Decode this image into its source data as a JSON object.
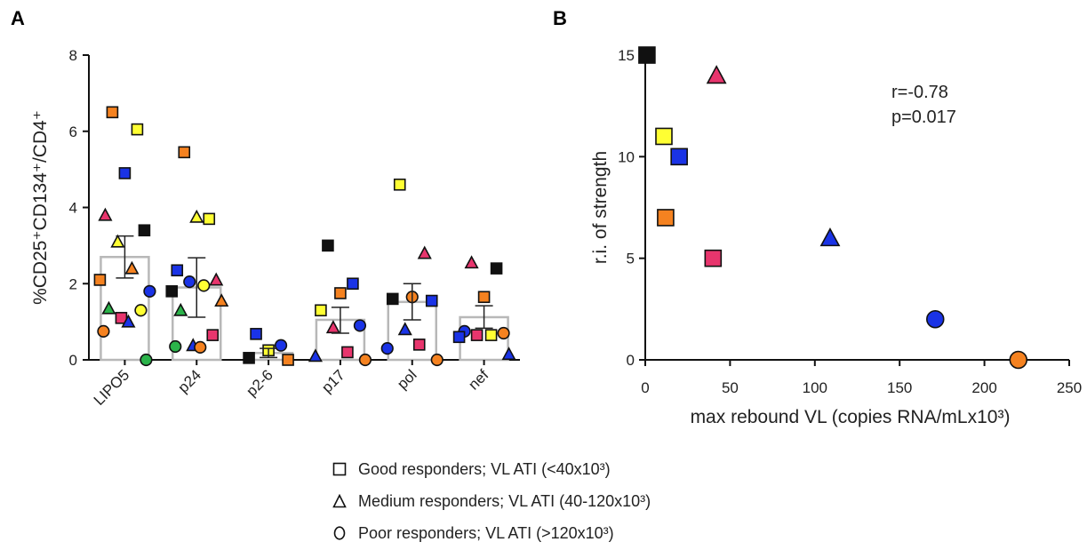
{
  "panels": {
    "a_label": "A",
    "b_label": "B"
  },
  "colors": {
    "orange": "#f58220",
    "yellow": "#ffff33",
    "blue": "#1a33e6",
    "black": "#111111",
    "pink": "#e8356d",
    "green": "#2bb34a",
    "bar_edge": "#b8b8b8",
    "axis": "#111111"
  },
  "chart_data": [
    {
      "id": "A",
      "type": "bar",
      "title": "",
      "xlabel": "",
      "ylabel": "%CD25⁺CD134⁺/CD4⁺",
      "ylim": [
        0,
        8
      ],
      "yticks": [
        0,
        2,
        4,
        6,
        8
      ],
      "categories": [
        "LIPO5",
        "p24",
        "p2-6",
        "p17",
        "pol",
        "nef"
      ],
      "means": [
        2.7,
        1.9,
        0.18,
        1.05,
        1.52,
        1.12
      ],
      "sem_low": [
        2.15,
        1.12,
        0.06,
        0.7,
        1.05,
        0.83
      ],
      "sem_high": [
        3.25,
        2.68,
        0.3,
        1.38,
        2.0,
        1.42
      ],
      "points": [
        {
          "cat": "LIPO5",
          "y": 6.5,
          "shape": "square",
          "color": "orange"
        },
        {
          "cat": "LIPO5",
          "y": 6.05,
          "shape": "square",
          "color": "yellow"
        },
        {
          "cat": "LIPO5",
          "y": 4.9,
          "shape": "square",
          "color": "blue"
        },
        {
          "cat": "LIPO5",
          "y": 3.8,
          "shape": "triangle",
          "color": "pink"
        },
        {
          "cat": "LIPO5",
          "y": 3.4,
          "shape": "square",
          "color": "black"
        },
        {
          "cat": "LIPO5",
          "y": 3.1,
          "shape": "triangle",
          "color": "yellow"
        },
        {
          "cat": "LIPO5",
          "y": 2.4,
          "shape": "triangle",
          "color": "orange"
        },
        {
          "cat": "LIPO5",
          "y": 2.1,
          "shape": "square",
          "color": "orange"
        },
        {
          "cat": "LIPO5",
          "y": 1.8,
          "shape": "circle",
          "color": "blue"
        },
        {
          "cat": "LIPO5",
          "y": 1.35,
          "shape": "triangle",
          "color": "green"
        },
        {
          "cat": "LIPO5",
          "y": 1.3,
          "shape": "circle",
          "color": "yellow"
        },
        {
          "cat": "LIPO5",
          "y": 1.1,
          "shape": "square",
          "color": "pink"
        },
        {
          "cat": "LIPO5",
          "y": 1.0,
          "shape": "triangle",
          "color": "blue"
        },
        {
          "cat": "LIPO5",
          "y": 0.75,
          "shape": "circle",
          "color": "orange"
        },
        {
          "cat": "LIPO5",
          "y": 0.0,
          "shape": "circle",
          "color": "green"
        },
        {
          "cat": "p24",
          "y": 5.45,
          "shape": "square",
          "color": "orange"
        },
        {
          "cat": "p24",
          "y": 3.7,
          "shape": "square",
          "color": "yellow"
        },
        {
          "cat": "p24",
          "y": 3.75,
          "shape": "triangle",
          "color": "yellow"
        },
        {
          "cat": "p24",
          "y": 2.35,
          "shape": "square",
          "color": "blue"
        },
        {
          "cat": "p24",
          "y": 2.1,
          "shape": "triangle",
          "color": "pink"
        },
        {
          "cat": "p24",
          "y": 2.05,
          "shape": "circle",
          "color": "blue"
        },
        {
          "cat": "p24",
          "y": 1.95,
          "shape": "circle",
          "color": "yellow"
        },
        {
          "cat": "p24",
          "y": 1.8,
          "shape": "square",
          "color": "black"
        },
        {
          "cat": "p24",
          "y": 1.55,
          "shape": "triangle",
          "color": "orange"
        },
        {
          "cat": "p24",
          "y": 1.3,
          "shape": "triangle",
          "color": "green"
        },
        {
          "cat": "p24",
          "y": 0.65,
          "shape": "square",
          "color": "pink"
        },
        {
          "cat": "p24",
          "y": 0.38,
          "shape": "triangle",
          "color": "blue"
        },
        {
          "cat": "p24",
          "y": 0.33,
          "shape": "circle",
          "color": "orange"
        },
        {
          "cat": "p24",
          "y": 0.35,
          "shape": "circle",
          "color": "green"
        },
        {
          "cat": "p2-6",
          "y": 0.68,
          "shape": "square",
          "color": "blue"
        },
        {
          "cat": "p2-6",
          "y": 0.38,
          "shape": "circle",
          "color": "blue"
        },
        {
          "cat": "p2-6",
          "y": 0.25,
          "shape": "square",
          "color": "yellow"
        },
        {
          "cat": "p2-6",
          "y": 0.05,
          "shape": "square",
          "color": "black"
        },
        {
          "cat": "p2-6",
          "y": 0.0,
          "shape": "square",
          "color": "orange"
        },
        {
          "cat": "p17",
          "y": 3.0,
          "shape": "square",
          "color": "black"
        },
        {
          "cat": "p17",
          "y": 2.0,
          "shape": "square",
          "color": "blue"
        },
        {
          "cat": "p17",
          "y": 1.75,
          "shape": "square",
          "color": "orange"
        },
        {
          "cat": "p17",
          "y": 1.3,
          "shape": "square",
          "color": "yellow"
        },
        {
          "cat": "p17",
          "y": 0.9,
          "shape": "circle",
          "color": "blue"
        },
        {
          "cat": "p17",
          "y": 0.85,
          "shape": "triangle",
          "color": "pink"
        },
        {
          "cat": "p17",
          "y": 0.2,
          "shape": "square",
          "color": "pink"
        },
        {
          "cat": "p17",
          "y": 0.1,
          "shape": "triangle",
          "color": "blue"
        },
        {
          "cat": "p17",
          "y": 0.0,
          "shape": "circle",
          "color": "orange"
        },
        {
          "cat": "pol",
          "y": 4.6,
          "shape": "square",
          "color": "yellow"
        },
        {
          "cat": "pol",
          "y": 2.8,
          "shape": "triangle",
          "color": "pink"
        },
        {
          "cat": "pol",
          "y": 1.65,
          "shape": "circle",
          "color": "orange"
        },
        {
          "cat": "pol",
          "y": 1.6,
          "shape": "square",
          "color": "black"
        },
        {
          "cat": "pol",
          "y": 1.55,
          "shape": "square",
          "color": "blue"
        },
        {
          "cat": "pol",
          "y": 0.8,
          "shape": "triangle",
          "color": "blue"
        },
        {
          "cat": "pol",
          "y": 0.4,
          "shape": "square",
          "color": "pink"
        },
        {
          "cat": "pol",
          "y": 0.3,
          "shape": "circle",
          "color": "blue"
        },
        {
          "cat": "pol",
          "y": 0.0,
          "shape": "circle",
          "color": "orange"
        },
        {
          "cat": "nef",
          "y": 2.55,
          "shape": "triangle",
          "color": "pink"
        },
        {
          "cat": "nef",
          "y": 2.4,
          "shape": "square",
          "color": "black"
        },
        {
          "cat": "nef",
          "y": 1.65,
          "shape": "square",
          "color": "orange"
        },
        {
          "cat": "nef",
          "y": 0.75,
          "shape": "circle",
          "color": "blue"
        },
        {
          "cat": "nef",
          "y": 0.7,
          "shape": "circle",
          "color": "orange"
        },
        {
          "cat": "nef",
          "y": 0.65,
          "shape": "square",
          "color": "pink"
        },
        {
          "cat": "nef",
          "y": 0.65,
          "shape": "square",
          "color": "yellow"
        },
        {
          "cat": "nef",
          "y": 0.6,
          "shape": "square",
          "color": "blue"
        },
        {
          "cat": "nef",
          "y": 0.15,
          "shape": "triangle",
          "color": "blue"
        }
      ]
    },
    {
      "id": "B",
      "type": "scatter",
      "title": "",
      "xlabel": "max rebound VL (copies RNA/mLx10³)",
      "ylabel": "r.i. of strength",
      "xlim": [
        0,
        250
      ],
      "ylim": [
        0,
        15
      ],
      "xticks": [
        0,
        50,
        100,
        150,
        200,
        250
      ],
      "yticks": [
        0,
        5,
        10,
        15
      ],
      "annotation": [
        "r=-0.78",
        "p=0.017"
      ],
      "points": [
        {
          "x": 1,
          "y": 15,
          "shape": "square",
          "color": "black"
        },
        {
          "x": 42,
          "y": 14,
          "shape": "triangle",
          "color": "pink"
        },
        {
          "x": 11,
          "y": 11,
          "shape": "square",
          "color": "yellow"
        },
        {
          "x": 20,
          "y": 10,
          "shape": "square",
          "color": "blue"
        },
        {
          "x": 12,
          "y": 7,
          "shape": "square",
          "color": "orange"
        },
        {
          "x": 109,
          "y": 6,
          "shape": "triangle",
          "color": "blue"
        },
        {
          "x": 40,
          "y": 5,
          "shape": "square",
          "color": "pink"
        },
        {
          "x": 171,
          "y": 2,
          "shape": "circle",
          "color": "blue"
        },
        {
          "x": 220,
          "y": 0,
          "shape": "circle",
          "color": "orange"
        }
      ]
    }
  ],
  "legend": [
    {
      "shape": "square",
      "text": "Good responders; VL ATI (<40x10³)"
    },
    {
      "shape": "triangle",
      "text": "Medium responders; VL ATI (40-120x10³)"
    },
    {
      "shape": "circle",
      "text": "Poor responders; VL ATI (>120x10³)"
    }
  ]
}
